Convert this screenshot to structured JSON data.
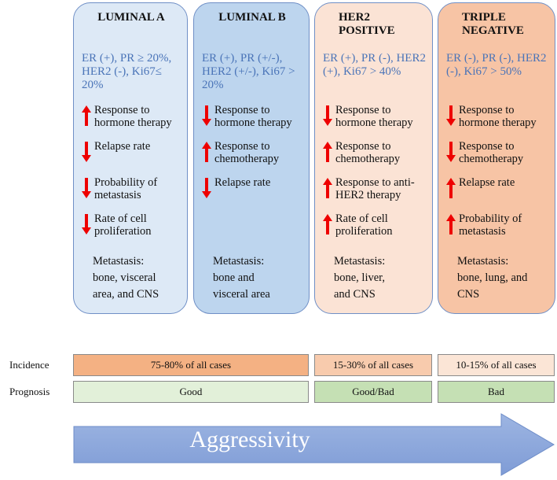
{
  "columns": [
    {
      "title": "LUMINAL A",
      "markers": "ER (+), PR ≥ 20%, HER2 (-), Ki67≤ 20%",
      "color": "#dde9f6",
      "items": [
        {
          "dir": "up",
          "text": "Response to hormone therapy"
        },
        {
          "dir": "down",
          "text": "Relapse rate"
        },
        {
          "dir": "down",
          "text": "Probability of metastasis"
        },
        {
          "dir": "down",
          "text": "Rate of cell proliferation"
        }
      ],
      "metastasis": "Metastasis:\nbone, visceral\narea, and CNS"
    },
    {
      "title": "LUMINAL B",
      "markers": "ER (+), PR (+/-), HER2 (+/-), Ki67 > 20%",
      "color": "#bdd5ee",
      "items": [
        {
          "dir": "down",
          "text": "Response to hormone therapy"
        },
        {
          "dir": "up",
          "text": "Response to chemotherapy"
        },
        {
          "dir": "down",
          "text": "Relapse rate"
        }
      ],
      "metastasis": "Metastasis:\nbone and\nvisceral area"
    },
    {
      "title": "HER2 POSITIVE",
      "markers": "ER (+), PR (-), HER2 (+), Ki67 > 40%",
      "color": "#fbe3d5",
      "items": [
        {
          "dir": "down",
          "text": "Response to hormone therapy"
        },
        {
          "dir": "up",
          "text": "Response to chemotherapy"
        },
        {
          "dir": "up",
          "text": "Response to anti-HER2 therapy"
        },
        {
          "dir": "up",
          "text": "Rate of cell proliferation"
        }
      ],
      "metastasis": "Metastasis:\nbone, liver,\nand CNS"
    },
    {
      "title": "TRIPLE NEGATIVE",
      "markers": "ER (-), PR (-), HER2 (-), Ki67 > 50%",
      "color": "#f7c4a5",
      "items": [
        {
          "dir": "down",
          "text": "Response to hormone therapy"
        },
        {
          "dir": "down",
          "text": "Response to chemotherapy"
        },
        {
          "dir": "up",
          "text": "Relapse rate"
        },
        {
          "dir": "up",
          "text": "Probability of metastasis"
        }
      ],
      "metastasis": "Metastasis:\nbone, lung,  and\nCNS"
    }
  ],
  "incidence": {
    "label": "Incidence",
    "values": [
      "75-80% of all cases",
      "15-30% of all cases",
      "10-15% of all cases"
    ],
    "colors": [
      "#f4b183",
      "#f8cbad",
      "#fbe5d6"
    ]
  },
  "prognosis": {
    "label": "Prognosis",
    "values": [
      "Good",
      "Good/Bad",
      "Bad"
    ],
    "colors": [
      "#e2f0d9",
      "#c5e0b4",
      "#c5e0b4"
    ]
  },
  "arrow": {
    "label": "Aggressivity",
    "color": "#8faadc"
  },
  "arrow_color": "#ff0000"
}
